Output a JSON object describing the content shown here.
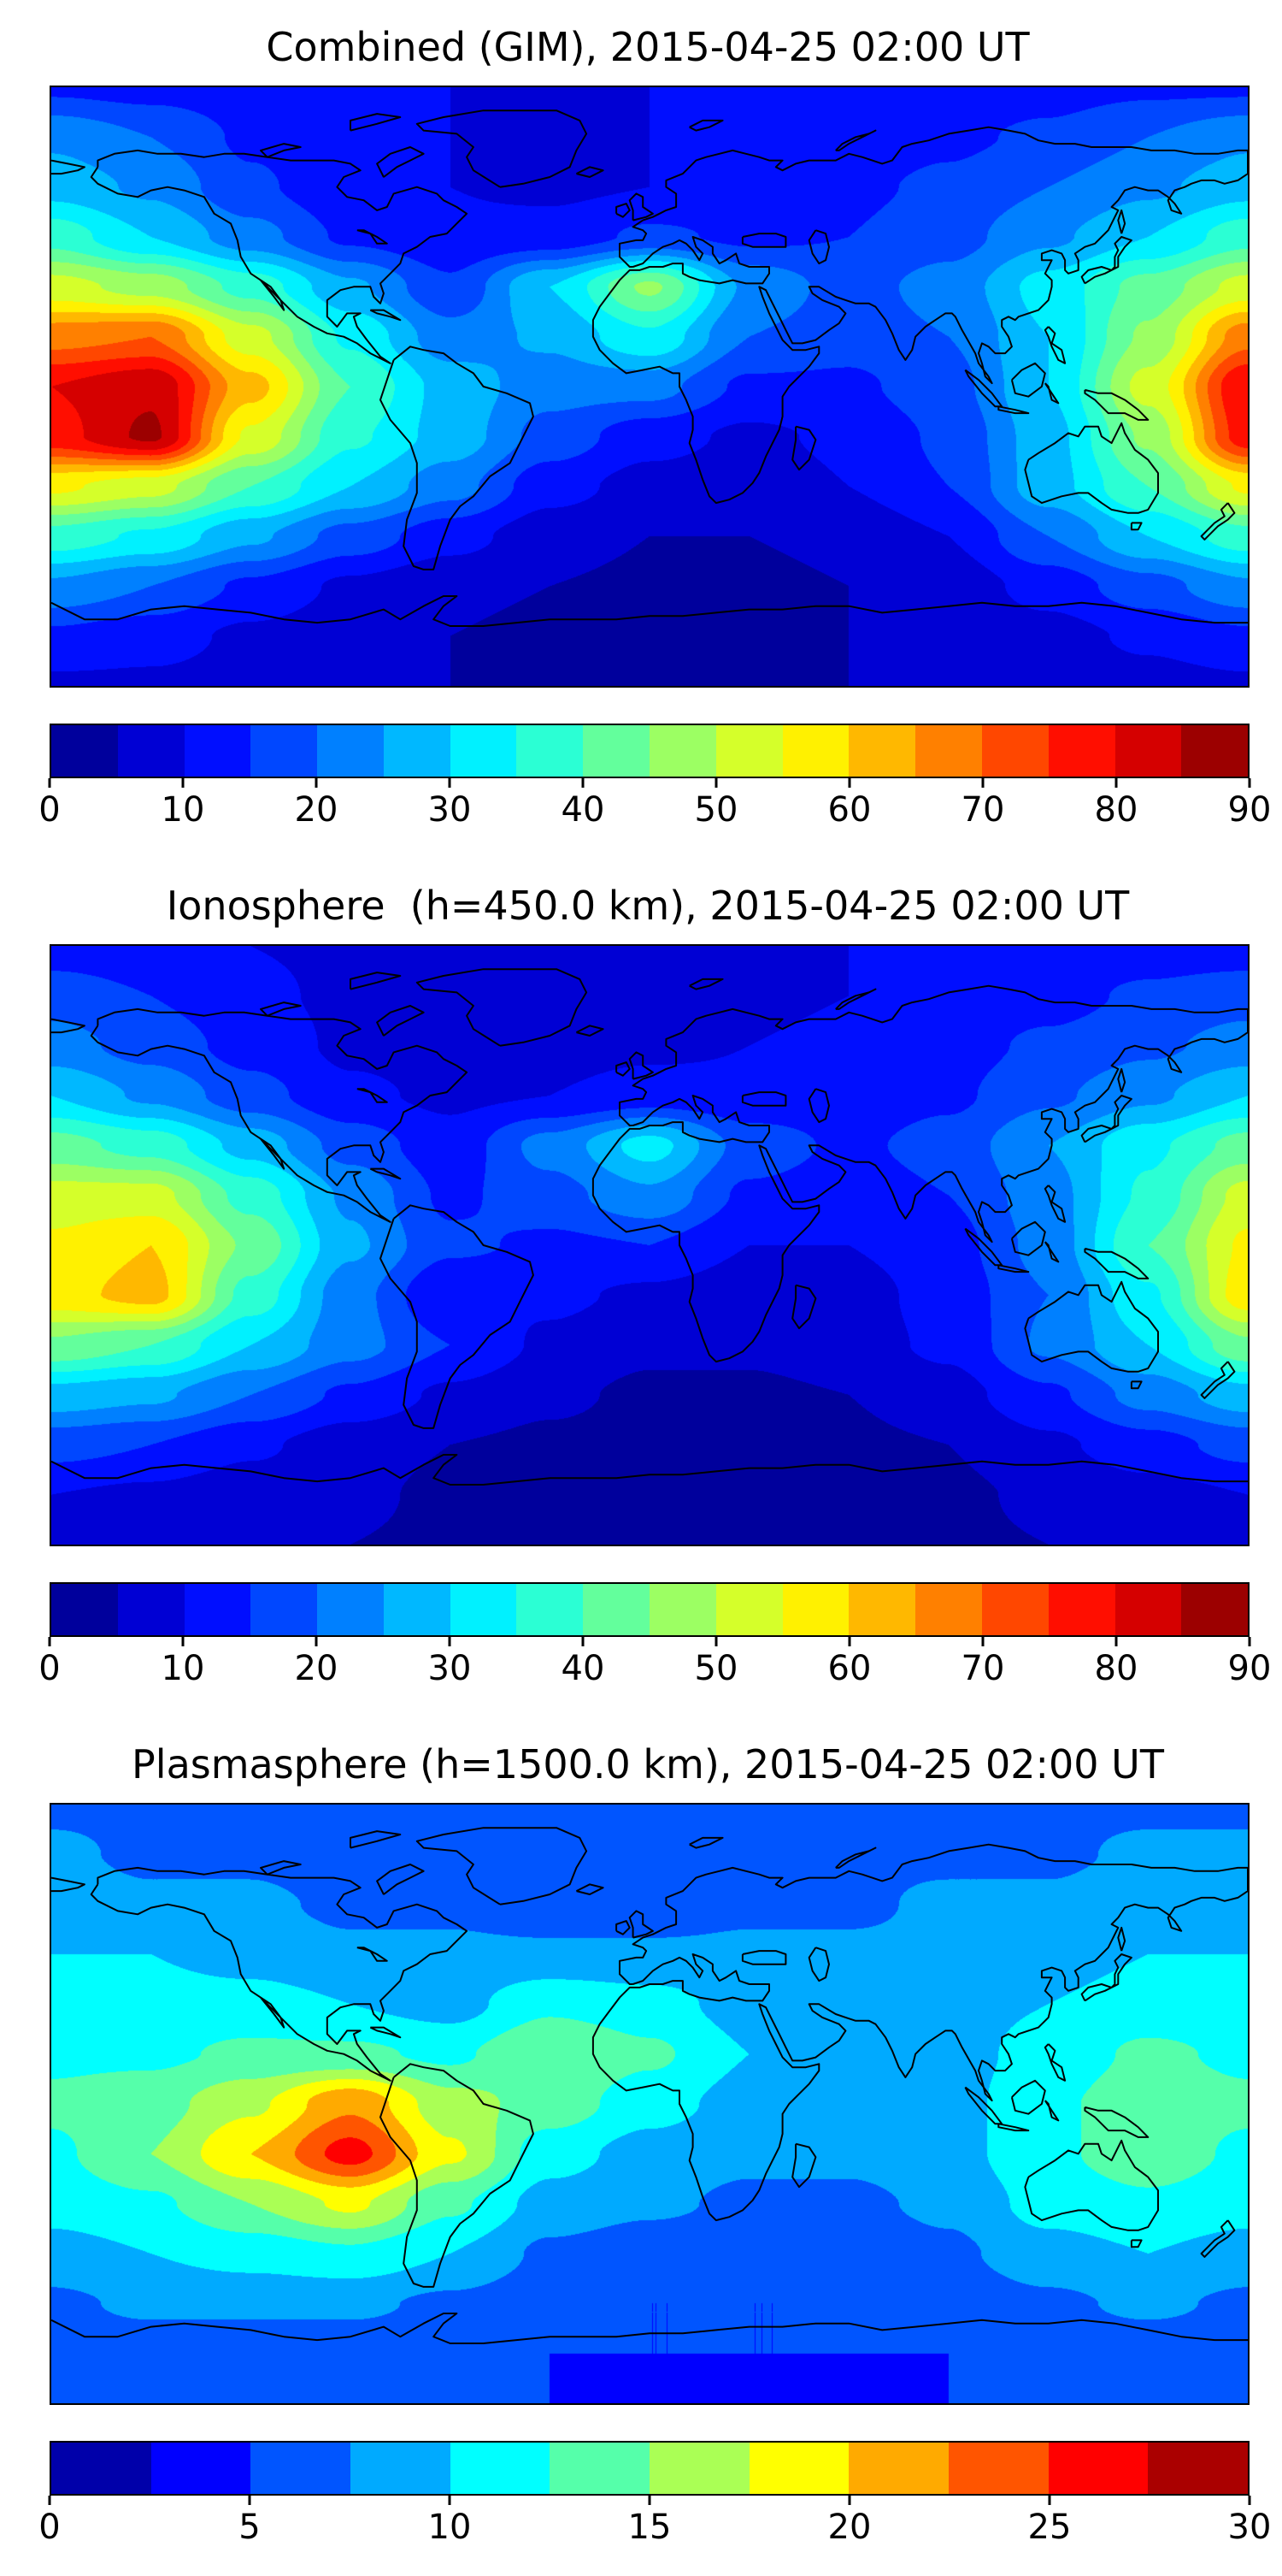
{
  "chart_data": [
    {
      "type": "heatmap",
      "title": "Combined (GIM), 2015-04-25 02:00 UT",
      "colormap": "jet",
      "projection": "equirectangular world map with coastlines",
      "zlim": [
        0,
        90
      ],
      "contour_step": 5,
      "colorbar_ticks": [
        0,
        10,
        20,
        30,
        40,
        50,
        60,
        70,
        80,
        90
      ],
      "legend_position": "bottom colorbar",
      "grid": {
        "lon": [
          -180,
          -150,
          -120,
          -90,
          -60,
          -30,
          0,
          30,
          60,
          90,
          120,
          150,
          180
        ],
        "lat": [
          90,
          75,
          60,
          45,
          30,
          15,
          0,
          -15,
          -30,
          -45,
          -60,
          -75,
          -90
        ],
        "values": [
          [
            14,
            13,
            12,
            11,
            10,
            10,
            10,
            10,
            11,
            12,
            13,
            14,
            14
          ],
          [
            24,
            20,
            14,
            11,
            10,
            9,
            10,
            11,
            12,
            14,
            16,
            20,
            24
          ],
          [
            28,
            24,
            16,
            11,
            10,
            9,
            10,
            12,
            14,
            16,
            20,
            24,
            28
          ],
          [
            38,
            30,
            22,
            14,
            11,
            12,
            16,
            14,
            15,
            18,
            24,
            30,
            38
          ],
          [
            52,
            48,
            38,
            26,
            16,
            30,
            46,
            24,
            18,
            22,
            32,
            42,
            52
          ],
          [
            68,
            70,
            52,
            34,
            22,
            26,
            34,
            20,
            17,
            20,
            30,
            46,
            68
          ],
          [
            80,
            84,
            62,
            40,
            28,
            22,
            22,
            14,
            14,
            18,
            30,
            52,
            80
          ],
          [
            78,
            86,
            54,
            36,
            28,
            18,
            12,
            9,
            11,
            16,
            28,
            46,
            78
          ],
          [
            56,
            52,
            40,
            30,
            22,
            12,
            8,
            7,
            10,
            15,
            28,
            40,
            56
          ],
          [
            38,
            34,
            26,
            18,
            12,
            7,
            5,
            5,
            6,
            10,
            20,
            30,
            38
          ],
          [
            24,
            20,
            14,
            9,
            6,
            5,
            4,
            4,
            5,
            7,
            12,
            18,
            24
          ],
          [
            14,
            12,
            9,
            7,
            5,
            4,
            4,
            4,
            5,
            6,
            8,
            11,
            14
          ],
          [
            9,
            9,
            8,
            6,
            5,
            5,
            5,
            5,
            5,
            6,
            7,
            8,
            9
          ]
        ]
      }
    },
    {
      "type": "heatmap",
      "title": "Ionosphere  (h=450.0 km), 2015-04-25 02:00 UT",
      "colormap": "jet",
      "projection": "equirectangular world map with coastlines",
      "zlim": [
        0,
        90
      ],
      "contour_step": 5,
      "colorbar_ticks": [
        0,
        10,
        20,
        30,
        40,
        50,
        60,
        70,
        80,
        90
      ],
      "legend_position": "bottom colorbar",
      "grid": {
        "lon": [
          -180,
          -150,
          -120,
          -90,
          -60,
          -30,
          0,
          30,
          60,
          90,
          120,
          150,
          180
        ],
        "lat": [
          90,
          75,
          60,
          45,
          30,
          15,
          0,
          -15,
          -30,
          -45,
          -60,
          -75,
          -90
        ],
        "values": [
          [
            12,
            11,
            10,
            9,
            9,
            8,
            9,
            9,
            10,
            10,
            11,
            12,
            12
          ],
          [
            18,
            15,
            11,
            9,
            8,
            8,
            8,
            9,
            10,
            11,
            13,
            16,
            18
          ],
          [
            22,
            18,
            13,
            9,
            8,
            8,
            9,
            10,
            11,
            13,
            16,
            19,
            22
          ],
          [
            30,
            24,
            17,
            11,
            9,
            10,
            12,
            11,
            12,
            14,
            19,
            24,
            30
          ],
          [
            42,
            38,
            28,
            18,
            12,
            22,
            32,
            18,
            14,
            17,
            25,
            34,
            42
          ],
          [
            52,
            52,
            38,
            24,
            14,
            18,
            24,
            14,
            12,
            15,
            23,
            36,
            52
          ],
          [
            56,
            60,
            44,
            26,
            16,
            14,
            15,
            10,
            10,
            13,
            22,
            40,
            56
          ],
          [
            58,
            62,
            38,
            22,
            10,
            11,
            9,
            7,
            8,
            12,
            20,
            34,
            58
          ],
          [
            44,
            40,
            30,
            22,
            15,
            9,
            6,
            6,
            8,
            11,
            21,
            30,
            44
          ],
          [
            28,
            26,
            20,
            14,
            9,
            6,
            4,
            4,
            5,
            8,
            14,
            22,
            28
          ],
          [
            17,
            15,
            11,
            7,
            5,
            4,
            3,
            3,
            4,
            5,
            9,
            13,
            17
          ],
          [
            10,
            9,
            7,
            6,
            4,
            3,
            3,
            3,
            3,
            4,
            6,
            8,
            10
          ],
          [
            7,
            7,
            6,
            5,
            4,
            4,
            3,
            3,
            4,
            4,
            5,
            6,
            7
          ]
        ]
      }
    },
    {
      "type": "heatmap",
      "title": "Plasmasphere (h=1500.0 km), 2015-04-25 02:00 UT",
      "colormap": "jet",
      "projection": "equirectangular world map with coastlines",
      "zlim": [
        0,
        30
      ],
      "contour_step": 2.5,
      "colorbar_ticks": [
        0,
        5,
        10,
        15,
        20,
        25,
        30
      ],
      "legend_position": "bottom colorbar",
      "grid": {
        "lon": [
          -180,
          -150,
          -120,
          -90,
          -60,
          -30,
          0,
          30,
          60,
          90,
          120,
          150,
          180
        ],
        "lat": [
          90,
          75,
          60,
          45,
          30,
          15,
          0,
          -15,
          -30,
          -45,
          -60,
          -75,
          -90
        ],
        "values": [
          [
            7,
            7,
            6,
            6,
            6,
            6,
            6,
            6,
            6,
            7,
            7,
            7,
            7
          ],
          [
            8,
            7,
            7,
            6,
            6,
            6,
            6,
            6,
            7,
            7,
            7,
            8,
            8
          ],
          [
            9,
            8,
            8,
            7,
            7,
            6,
            6,
            7,
            7,
            8,
            8,
            9,
            9
          ],
          [
            10,
            10,
            9,
            8,
            8,
            8,
            8,
            8,
            8,
            8,
            9,
            10,
            10
          ],
          [
            11,
            11,
            11,
            10,
            9,
            12,
            11,
            9,
            8,
            9,
            10,
            11,
            11
          ],
          [
            12,
            12,
            13,
            13,
            12,
            15,
            13,
            10,
            9,
            9,
            11,
            13,
            12
          ],
          [
            13,
            14,
            17,
            22,
            16,
            14,
            11,
            9,
            8,
            9,
            12,
            14,
            13
          ],
          [
            12,
            15,
            20,
            26,
            18,
            11,
            9,
            8,
            8,
            9,
            12,
            14,
            12
          ],
          [
            11,
            12,
            15,
            18,
            13,
            9,
            8,
            7,
            7,
            8,
            11,
            12,
            11
          ],
          [
            9,
            10,
            11,
            12,
            10,
            7,
            6,
            6,
            6,
            7,
            9,
            10,
            9
          ],
          [
            7,
            8,
            8,
            8,
            7,
            6,
            5,
            5,
            5,
            6,
            7,
            8,
            7
          ],
          [
            6,
            6,
            6,
            6,
            6,
            5,
            5,
            5,
            5,
            5,
            6,
            6,
            6
          ],
          [
            5,
            5,
            5,
            5,
            5,
            5,
            4,
            4,
            4,
            5,
            5,
            5,
            5
          ]
        ]
      }
    }
  ]
}
